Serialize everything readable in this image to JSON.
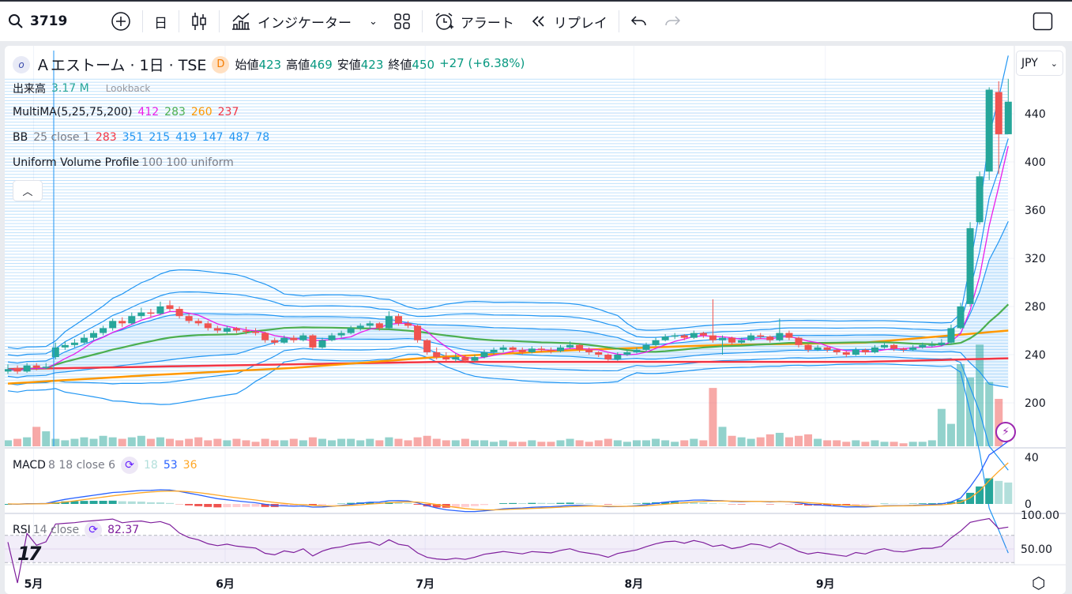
{
  "toolbar": {
    "symbol": "3719",
    "interval": "日",
    "indicators": "インジケーター",
    "alert": "アラート",
    "replay": "リプレイ"
  },
  "legend": {
    "title": "Ａエストーム · 1日 · TSE",
    "badge": "D",
    "open_label": "始値",
    "open": "423",
    "high_label": "高値",
    "high": "469",
    "low_label": "安値",
    "low": "423",
    "close_label": "終値",
    "close": "450",
    "change": "+27 (+6.38%)",
    "lookback": "Lookback",
    "volume_label": "出来高",
    "volume": "3.17 M",
    "ma_label": "MultiMA(5,25,75,200)",
    "ma_values": [
      "412",
      "283",
      "260",
      "237"
    ],
    "bb_label": "BB",
    "bb_params": "25 close 1",
    "bb_values": [
      "283",
      "351",
      "215",
      "419",
      "147",
      "487",
      "78"
    ],
    "vp_label": "Uniform Volume Profile",
    "vp_params": "100 100 uniform",
    "macd_label": "MACD",
    "macd_params": "8 18 close 6",
    "macd_values": [
      "18",
      "53",
      "36"
    ],
    "rsi_label": "RSI",
    "rsi_params": "14 close",
    "rsi_value": "82.37"
  },
  "currency": "JPY",
  "colors": {
    "up": "#26a69a",
    "down": "#ef5350",
    "ma5": "#e91ee9",
    "ma25": "#4caf50",
    "ma75": "#ff9800",
    "ma200": "#f23645",
    "bb": "#2196f3",
    "macd": "#2962ff",
    "signal": "#ffa726",
    "rsi": "#7e1e9c"
  },
  "chart_data": {
    "type": "candlestick",
    "price_ticks": [
      200,
      240,
      280,
      320,
      360,
      400,
      440
    ],
    "macd_ticks": [
      0,
      40
    ],
    "rsi_ticks": [
      "50.00",
      "100.00"
    ],
    "x_labels": [
      {
        "label": "5月",
        "index": 2.7
      },
      {
        "label": "6月",
        "index": 22.8
      },
      {
        "label": "7月",
        "index": 43.8
      },
      {
        "label": "8月",
        "index": 65.7
      },
      {
        "label": "9月",
        "index": 85.8
      }
    ],
    "candles": [
      [
        226,
        232,
        224,
        228
      ],
      [
        229,
        231,
        224,
        226
      ],
      [
        226,
        233,
        225,
        231
      ],
      [
        231,
        233,
        227,
        229
      ],
      [
        229,
        233,
        228,
        230
      ],
      [
        238,
        250,
        236,
        246
      ],
      [
        246,
        251,
        244,
        248
      ],
      [
        248,
        253,
        246,
        250
      ],
      [
        250,
        257,
        249,
        254
      ],
      [
        254,
        260,
        252,
        258
      ],
      [
        258,
        264,
        256,
        262
      ],
      [
        262,
        270,
        260,
        268
      ],
      [
        268,
        271,
        263,
        266
      ],
      [
        266,
        275,
        265,
        272
      ],
      [
        272,
        279,
        270,
        275
      ],
      [
        275,
        278,
        271,
        274
      ],
      [
        274,
        284,
        273,
        280
      ],
      [
        281,
        285,
        276,
        278
      ],
      [
        278,
        280,
        270,
        272
      ],
      [
        272,
        274,
        266,
        268
      ],
      [
        268,
        270,
        264,
        266
      ],
      [
        266,
        268,
        260,
        262
      ],
      [
        262,
        264,
        258,
        260
      ],
      [
        259,
        264,
        257,
        262
      ],
      [
        262,
        263,
        258,
        260
      ],
      [
        260,
        263,
        257,
        259
      ],
      [
        259,
        262,
        256,
        258
      ],
      [
        258,
        259,
        250,
        252
      ],
      [
        252,
        254,
        248,
        250
      ],
      [
        250,
        256,
        249,
        254
      ],
      [
        254,
        256,
        250,
        252
      ],
      [
        252,
        258,
        251,
        256
      ],
      [
        256,
        257,
        244,
        246
      ],
      [
        246,
        254,
        245,
        252
      ],
      [
        252,
        258,
        251,
        256
      ],
      [
        256,
        260,
        254,
        258
      ],
      [
        258,
        264,
        257,
        262
      ],
      [
        262,
        266,
        260,
        264
      ],
      [
        264,
        268,
        261,
        266
      ],
      [
        266,
        267,
        260,
        262
      ],
      [
        262,
        276,
        261,
        272
      ],
      [
        272,
        274,
        264,
        266
      ],
      [
        266,
        268,
        262,
        264
      ],
      [
        264,
        265,
        250,
        252
      ],
      [
        252,
        253,
        240,
        242
      ],
      [
        242,
        246,
        236,
        238
      ],
      [
        238,
        242,
        234,
        236
      ],
      [
        236,
        241,
        234,
        238
      ],
      [
        238,
        240,
        233,
        235
      ],
      [
        235,
        240,
        234,
        238
      ],
      [
        238,
        244,
        237,
        242
      ],
      [
        242,
        246,
        240,
        244
      ],
      [
        244,
        248,
        242,
        246
      ],
      [
        246,
        247,
        242,
        244
      ],
      [
        244,
        246,
        240,
        242
      ],
      [
        242,
        247,
        241,
        245
      ],
      [
        245,
        247,
        242,
        244
      ],
      [
        244,
        246,
        241,
        243
      ],
      [
        243,
        248,
        242,
        246
      ],
      [
        246,
        251,
        245,
        248
      ],
      [
        248,
        249,
        242,
        244
      ],
      [
        244,
        246,
        240,
        242
      ],
      [
        242,
        243,
        238,
        240
      ],
      [
        240,
        241,
        235,
        236
      ],
      [
        236,
        242,
        235,
        240
      ],
      [
        240,
        244,
        239,
        242
      ],
      [
        242,
        246,
        241,
        244
      ],
      [
        244,
        250,
        243,
        248
      ],
      [
        248,
        254,
        247,
        252
      ],
      [
        252,
        257,
        251,
        255
      ],
      [
        255,
        258,
        253,
        256
      ],
      [
        256,
        257,
        252,
        254
      ],
      [
        254,
        260,
        253,
        258
      ],
      [
        258,
        259,
        254,
        256
      ],
      [
        256,
        286,
        250,
        252
      ],
      [
        252,
        256,
        240,
        254
      ],
      [
        254,
        255,
        248,
        250
      ],
      [
        250,
        254,
        249,
        252
      ],
      [
        252,
        258,
        251,
        256
      ],
      [
        256,
        258,
        253,
        255
      ],
      [
        255,
        256,
        250,
        252
      ],
      [
        252,
        270,
        251,
        258
      ],
      [
        258,
        260,
        252,
        254
      ],
      [
        254,
        255,
        246,
        248
      ],
      [
        248,
        249,
        242,
        244
      ],
      [
        244,
        248,
        243,
        246
      ],
      [
        246,
        247,
        242,
        244
      ],
      [
        244,
        245,
        240,
        242
      ],
      [
        242,
        243,
        238,
        240
      ],
      [
        240,
        246,
        239,
        244
      ],
      [
        244,
        245,
        240,
        242
      ],
      [
        242,
        248,
        241,
        246
      ],
      [
        246,
        250,
        245,
        248
      ],
      [
        248,
        249,
        243,
        245
      ],
      [
        245,
        246,
        242,
        244
      ],
      [
        244,
        248,
        243,
        246
      ],
      [
        246,
        250,
        245,
        248
      ],
      [
        248,
        251,
        246,
        248
      ],
      [
        248,
        253,
        247,
        250
      ],
      [
        250,
        265,
        249,
        262
      ],
      [
        262,
        283,
        261,
        280
      ],
      [
        282,
        350,
        280,
        345
      ],
      [
        350,
        392,
        348,
        388
      ],
      [
        392,
        462,
        385,
        460
      ],
      [
        458,
        467,
        390,
        423
      ],
      [
        423,
        469,
        423,
        450
      ]
    ],
    "volumes_m": [
      0.4,
      0.5,
      0.6,
      1.3,
      1.0,
      0.5,
      0.4,
      0.5,
      0.6,
      0.5,
      0.7,
      0.6,
      0.5,
      0.6,
      0.7,
      0.5,
      0.6,
      0.5,
      0.4,
      0.5,
      0.6,
      0.4,
      0.5,
      0.4,
      0.5,
      0.4,
      0.3,
      0.5,
      0.4,
      0.4,
      0.5,
      0.4,
      0.6,
      0.5,
      0.4,
      0.5,
      0.5,
      0.4,
      0.5,
      0.4,
      0.6,
      0.5,
      0.4,
      0.6,
      0.7,
      0.5,
      0.4,
      0.4,
      0.5,
      0.4,
      0.4,
      0.3,
      0.4,
      0.3,
      0.3,
      0.4,
      0.3,
      0.3,
      0.4,
      0.5,
      0.4,
      0.3,
      0.4,
      0.5,
      0.4,
      0.3,
      0.4,
      0.4,
      0.5,
      0.4,
      0.3,
      0.4,
      0.5,
      0.4,
      3.9,
      1.3,
      0.7,
      0.6,
      0.5,
      0.6,
      0.8,
      0.9,
      0.6,
      0.7,
      0.8,
      0.5,
      0.4,
      0.4,
      0.3,
      0.4,
      0.3,
      0.4,
      0.3,
      0.3,
      0.2,
      0.3,
      0.3,
      0.4,
      2.5,
      1.5,
      5.5,
      4.6,
      6.8,
      4.3,
      3.17
    ],
    "ma75_keypoints": [
      216,
      223,
      229,
      238,
      244,
      248,
      250,
      260
    ],
    "ma200_keypoints": [
      228,
      230,
      232,
      234,
      234,
      234,
      234,
      237
    ],
    "rsi_band": [
      30,
      70
    ]
  }
}
